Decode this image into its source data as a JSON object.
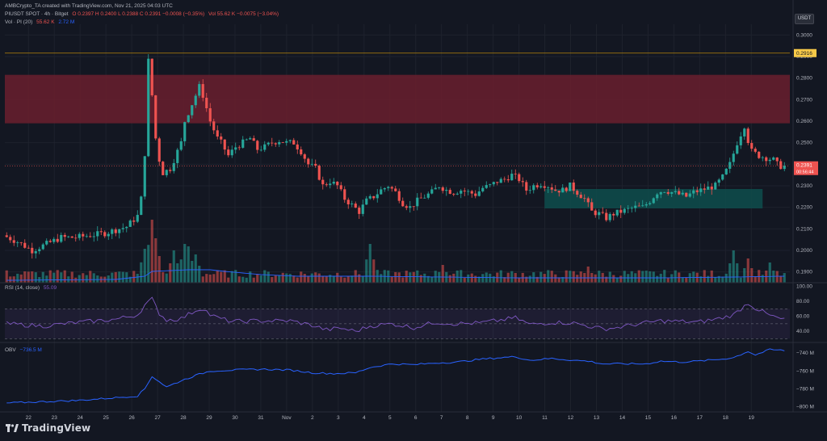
{
  "header": {
    "credit": "AMBCrypto_TA created with TradingView.com, Nov 21, 2025 04:03 UTC",
    "symbol": "PIUSDT SPOT · 4h · Bitget",
    "ohlc": "O 0.2397 H 0.2400 L 0.2388 C 0.2391 −0.0008 (−0.35%)",
    "volume": "Vol 55.62 K −0.0075 (−3.04%)",
    "vol_indicator_label": "Vol · PI (20)",
    "vol_indicator_values": [
      "55.62 K",
      "2.72 M"
    ]
  },
  "price_axis_unit": "USDT",
  "price_ticks": [
    "0.3000",
    "0.2900",
    "0.2800",
    "0.2700",
    "0.2600",
    "0.2500",
    "0.2400",
    "0.2300",
    "0.2200",
    "0.2100",
    "0.2000",
    "0.1900"
  ],
  "price_tags": {
    "resistance_line": "0.2916",
    "last_price": "0.2391",
    "countdown": "00:56:44"
  },
  "rsi": {
    "label": "RSI (14, close)",
    "value": "55.09",
    "ticks": [
      "100.00",
      "80.00",
      "60.00",
      "40.00"
    ]
  },
  "obv": {
    "label": "OBV",
    "value": "−736.5 M",
    "ticks": [
      "−740 M",
      "−760 M",
      "−780 M",
      "−800 M"
    ]
  },
  "time_ticks": [
    "22",
    "23",
    "24",
    "25",
    "26",
    "27",
    "28",
    "29",
    "30",
    "31",
    "Nov",
    "2",
    "3",
    "4",
    "5",
    "6",
    "7",
    "8",
    "9",
    "10",
    "11",
    "12",
    "13",
    "14",
    "15",
    "16",
    "17",
    "18",
    "19"
  ],
  "watermark": "TradingView",
  "colors": {
    "background": "#131722",
    "bull": "#26a69a",
    "bear": "#ef5350",
    "supply_zone": "#6a1f2e",
    "demand_zone": "#0e4a4a",
    "rsi_line": "#7e57c2",
    "obv_line": "#2962ff",
    "volume_ma": "#2962ff"
  },
  "chart_data": {
    "type": "candlestick",
    "symbol": "PIUSDT",
    "timeframe": "4h",
    "ylim": [
      0.185,
      0.305
    ],
    "zones": [
      {
        "type": "supply",
        "from": 0.259,
        "to": 0.2815
      },
      {
        "type": "demand",
        "from": 0.2195,
        "to": 0.2285
      }
    ],
    "horizontal_line": 0.2916,
    "price_path": [
      [
        0,
        0.207
      ],
      [
        4,
        0.204
      ],
      [
        8,
        0.2
      ],
      [
        12,
        0.203
      ],
      [
        16,
        0.206
      ],
      [
        20,
        0.206
      ],
      [
        24,
        0.207
      ],
      [
        28,
        0.208
      ],
      [
        32,
        0.21
      ],
      [
        34,
        0.211
      ],
      [
        37,
        0.216
      ],
      [
        38,
        0.224
      ],
      [
        39,
        0.245
      ],
      [
        40,
        0.288
      ],
      [
        41,
        0.272
      ],
      [
        42,
        0.252
      ],
      [
        43,
        0.242
      ],
      [
        44,
        0.236
      ],
      [
        46,
        0.238
      ],
      [
        48,
        0.246
      ],
      [
        49,
        0.25
      ],
      [
        50,
        0.26
      ],
      [
        52,
        0.268
      ],
      [
        53,
        0.272
      ],
      [
        54,
        0.276
      ],
      [
        55,
        0.272
      ],
      [
        56,
        0.266
      ],
      [
        57,
        0.26
      ],
      [
        58,
        0.256
      ],
      [
        59,
        0.252
      ],
      [
        60,
        0.25
      ],
      [
        62,
        0.244
      ],
      [
        64,
        0.248
      ],
      [
        66,
        0.25
      ],
      [
        68,
        0.252
      ],
      [
        70,
        0.247
      ],
      [
        72,
        0.248
      ],
      [
        74,
        0.25
      ],
      [
        76,
        0.251
      ],
      [
        78,
        0.25
      ],
      [
        80,
        0.25
      ],
      [
        82,
        0.246
      ],
      [
        84,
        0.24
      ],
      [
        86,
        0.238
      ],
      [
        88,
        0.23
      ],
      [
        90,
        0.232
      ],
      [
        92,
        0.23
      ],
      [
        94,
        0.224
      ],
      [
        96,
        0.221
      ],
      [
        98,
        0.218
      ],
      [
        100,
        0.223
      ],
      [
        102,
        0.225
      ],
      [
        104,
        0.228
      ],
      [
        106,
        0.23
      ],
      [
        108,
        0.227
      ],
      [
        110,
        0.222
      ],
      [
        112,
        0.22
      ],
      [
        114,
        0.223
      ],
      [
        116,
        0.225
      ],
      [
        118,
        0.227
      ],
      [
        120,
        0.23
      ],
      [
        122,
        0.228
      ],
      [
        124,
        0.227
      ],
      [
        126,
        0.228
      ],
      [
        128,
        0.227
      ],
      [
        130,
        0.226
      ],
      [
        132,
        0.229
      ],
      [
        134,
        0.23
      ],
      [
        136,
        0.232
      ],
      [
        138,
        0.233
      ],
      [
        140,
        0.235
      ],
      [
        142,
        0.233
      ],
      [
        144,
        0.228
      ],
      [
        146,
        0.23
      ],
      [
        148,
        0.231
      ],
      [
        150,
        0.23
      ],
      [
        152,
        0.228
      ],
      [
        154,
        0.228
      ],
      [
        156,
        0.23
      ],
      [
        158,
        0.227
      ],
      [
        160,
        0.224
      ],
      [
        162,
        0.218
      ],
      [
        164,
        0.217
      ],
      [
        166,
        0.215
      ],
      [
        168,
        0.217
      ],
      [
        170,
        0.218
      ],
      [
        172,
        0.219
      ],
      [
        174,
        0.22
      ],
      [
        176,
        0.22
      ],
      [
        178,
        0.223
      ],
      [
        180,
        0.227
      ],
      [
        182,
        0.228
      ],
      [
        184,
        0.227
      ],
      [
        186,
        0.226
      ],
      [
        188,
        0.225
      ],
      [
        190,
        0.227
      ],
      [
        192,
        0.228
      ],
      [
        194,
        0.229
      ],
      [
        196,
        0.23
      ],
      [
        198,
        0.234
      ],
      [
        200,
        0.24
      ],
      [
        202,
        0.25
      ],
      [
        204,
        0.258
      ],
      [
        205,
        0.251
      ],
      [
        206,
        0.246
      ],
      [
        208,
        0.244
      ],
      [
        210,
        0.243
      ],
      [
        212,
        0.242
      ],
      [
        213,
        0.24
      ],
      [
        214,
        0.2391
      ]
    ],
    "rsi_path": [
      [
        0,
        50
      ],
      [
        10,
        47
      ],
      [
        20,
        52
      ],
      [
        30,
        56
      ],
      [
        36,
        62
      ],
      [
        38,
        75
      ],
      [
        40,
        83
      ],
      [
        42,
        64
      ],
      [
        44,
        55
      ],
      [
        48,
        57
      ],
      [
        52,
        68
      ],
      [
        54,
        71
      ],
      [
        56,
        62
      ],
      [
        58,
        58
      ],
      [
        62,
        53
      ],
      [
        70,
        54
      ],
      [
        78,
        54
      ],
      [
        84,
        48
      ],
      [
        88,
        42
      ],
      [
        92,
        44
      ],
      [
        96,
        40
      ],
      [
        100,
        47
      ],
      [
        106,
        50
      ],
      [
        112,
        45
      ],
      [
        118,
        52
      ],
      [
        124,
        50
      ],
      [
        130,
        51
      ],
      [
        136,
        55
      ],
      [
        140,
        58
      ],
      [
        144,
        49
      ],
      [
        150,
        52
      ],
      [
        156,
        51
      ],
      [
        160,
        47
      ],
      [
        164,
        43
      ],
      [
        168,
        45
      ],
      [
        174,
        50
      ],
      [
        180,
        54
      ],
      [
        186,
        53
      ],
      [
        190,
        52
      ],
      [
        196,
        57
      ],
      [
        200,
        62
      ],
      [
        204,
        78
      ],
      [
        206,
        71
      ],
      [
        210,
        61
      ],
      [
        212,
        58
      ],
      [
        214,
        55
      ]
    ],
    "obv_path": [
      [
        0,
        -796
      ],
      [
        20,
        -793
      ],
      [
        30,
        -790
      ],
      [
        36,
        -788
      ],
      [
        38,
        -780
      ],
      [
        40,
        -766
      ],
      [
        44,
        -778
      ],
      [
        48,
        -771
      ],
      [
        52,
        -765
      ],
      [
        56,
        -760
      ],
      [
        62,
        -759
      ],
      [
        70,
        -758
      ],
      [
        78,
        -759
      ],
      [
        84,
        -762
      ],
      [
        90,
        -763
      ],
      [
        96,
        -762
      ],
      [
        100,
        -756
      ],
      [
        106,
        -752
      ],
      [
        112,
        -753
      ],
      [
        118,
        -751
      ],
      [
        124,
        -750
      ],
      [
        130,
        -747
      ],
      [
        136,
        -745
      ],
      [
        140,
        -744
      ],
      [
        144,
        -748
      ],
      [
        150,
        -746
      ],
      [
        156,
        -748
      ],
      [
        160,
        -749
      ],
      [
        164,
        -752
      ],
      [
        170,
        -752
      ],
      [
        176,
        -752
      ],
      [
        180,
        -749
      ],
      [
        186,
        -750
      ],
      [
        190,
        -749
      ],
      [
        196,
        -747
      ],
      [
        200,
        -745
      ],
      [
        204,
        -738
      ],
      [
        206,
        -742
      ],
      [
        210,
        -736
      ],
      [
        214,
        -737
      ]
    ],
    "volume_ma_path": [
      [
        0,
        3
      ],
      [
        30,
        4
      ],
      [
        38,
        8
      ],
      [
        40,
        14
      ],
      [
        50,
        16
      ],
      [
        56,
        16
      ],
      [
        60,
        14
      ],
      [
        70,
        10
      ],
      [
        80,
        8
      ],
      [
        100,
        8
      ],
      [
        120,
        7
      ],
      [
        140,
        6
      ],
      [
        160,
        6
      ],
      [
        180,
        6
      ],
      [
        200,
        7
      ],
      [
        214,
        8
      ]
    ],
    "volume_spikes": [
      [
        38,
        42
      ],
      [
        40,
        78
      ],
      [
        41,
        55
      ],
      [
        46,
        40
      ],
      [
        49,
        48
      ],
      [
        50,
        45
      ],
      [
        52,
        35
      ],
      [
        100,
        48
      ],
      [
        120,
        22
      ],
      [
        160,
        20
      ],
      [
        200,
        40
      ],
      [
        204,
        30
      ],
      [
        210,
        25
      ]
    ]
  }
}
